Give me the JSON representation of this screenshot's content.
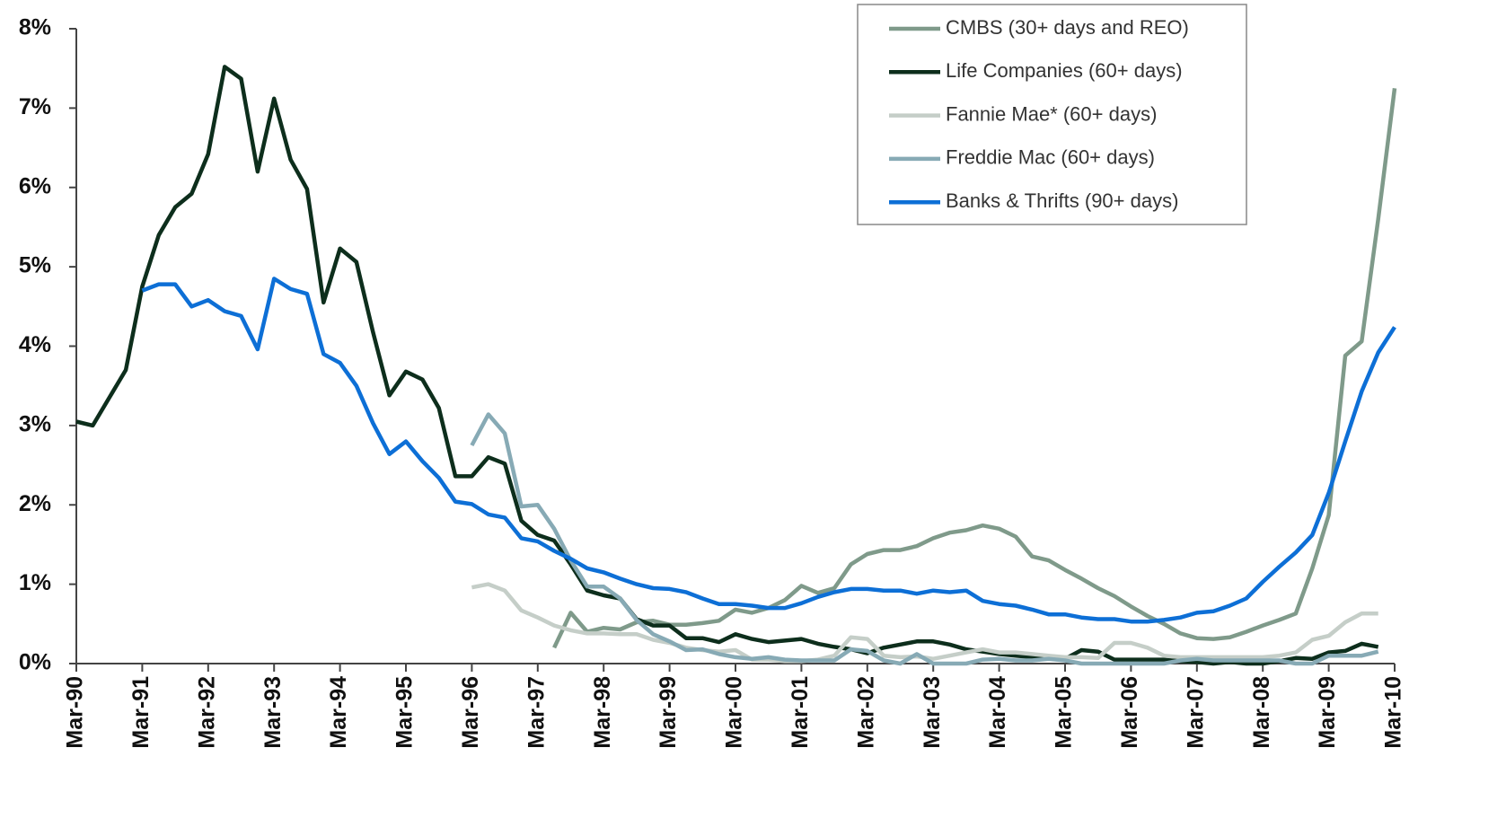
{
  "chart_data": {
    "type": "line",
    "categories": [
      "Mar-90",
      null,
      null,
      null,
      "Mar-91",
      null,
      null,
      null,
      "Mar-92",
      null,
      null,
      null,
      "Mar-93",
      null,
      null,
      null,
      "Mar-94",
      null,
      null,
      null,
      "Mar-95",
      null,
      null,
      null,
      "Mar-96",
      null,
      null,
      null,
      "Mar-97",
      null,
      null,
      null,
      "Mar-98",
      null,
      null,
      null,
      "Mar-99",
      null,
      null,
      null,
      "Mar-00",
      null,
      null,
      null,
      "Mar-01",
      null,
      null,
      null,
      "Mar-02",
      null,
      null,
      null,
      "Mar-03",
      null,
      null,
      null,
      "Mar-04",
      null,
      null,
      null,
      "Mar-05",
      null,
      null,
      null,
      "Mar-06",
      null,
      null,
      null,
      "Mar-07",
      null,
      null,
      null,
      "Mar-08",
      null,
      null,
      null,
      "Mar-09",
      null,
      null,
      null,
      "Mar-10"
    ],
    "series": [
      {
        "name": "CMBS (30+ days and REO)",
        "color": "#7f9a8a",
        "values": [
          null,
          null,
          null,
          null,
          null,
          null,
          null,
          null,
          null,
          null,
          null,
          null,
          null,
          null,
          null,
          null,
          null,
          null,
          null,
          null,
          null,
          null,
          null,
          null,
          null,
          null,
          null,
          null,
          null,
          0.2,
          0.64,
          0.4,
          0.45,
          0.43,
          0.52,
          0.54,
          0.49,
          0.49,
          0.51,
          0.54,
          0.68,
          0.64,
          0.7,
          0.8,
          0.98,
          0.89,
          0.95,
          1.25,
          1.38,
          1.43,
          1.43,
          1.48,
          1.58,
          1.65,
          1.68,
          1.74,
          1.7,
          1.6,
          1.35,
          1.3,
          1.18,
          1.07,
          0.95,
          0.85,
          0.72,
          0.6,
          0.5,
          0.38,
          0.32,
          0.31,
          0.33,
          0.4,
          0.48,
          0.55,
          0.63,
          1.2,
          1.87,
          3.88,
          4.06,
          5.6,
          7.25
        ]
      },
      {
        "name": "Life Companies (60+ days)",
        "color": "#0d2e1c",
        "values": [
          3.05,
          3.0,
          3.35,
          3.7,
          4.75,
          5.4,
          5.75,
          5.92,
          6.42,
          7.52,
          7.37,
          6.2,
          7.12,
          6.35,
          5.98,
          4.55,
          5.23,
          5.06,
          4.18,
          3.38,
          3.68,
          3.58,
          3.22,
          2.36,
          2.36,
          2.6,
          2.52,
          1.8,
          1.62,
          1.55,
          1.25,
          0.92,
          0.86,
          0.82,
          0.56,
          0.48,
          0.48,
          0.32,
          0.32,
          0.27,
          0.37,
          0.31,
          0.27,
          0.29,
          0.31,
          0.25,
          0.21,
          0.18,
          0.13,
          0.2,
          0.24,
          0.28,
          0.28,
          0.24,
          0.18,
          0.15,
          0.12,
          0.1,
          0.08,
          0.07,
          0.06,
          0.17,
          0.15,
          0.05,
          0.05,
          0.05,
          0.05,
          0.03,
          0.02,
          0,
          0.02,
          0,
          0,
          0.03,
          0.07,
          0.06,
          0.14,
          0.16,
          0.25,
          0.21,
          null
        ]
      },
      {
        "name": "Fannie Mae* (60+ days)",
        "color": "#c5cec8",
        "values": [
          null,
          null,
          null,
          null,
          null,
          null,
          null,
          null,
          null,
          null,
          null,
          null,
          null,
          null,
          null,
          null,
          null,
          null,
          null,
          null,
          null,
          null,
          null,
          null,
          0.96,
          1.0,
          0.92,
          0.67,
          0.58,
          0.48,
          0.42,
          0.38,
          0.38,
          0.37,
          0.37,
          0.3,
          0.26,
          0.2,
          0.17,
          0.15,
          0.17,
          0.05,
          0.05,
          0.03,
          0.03,
          0.05,
          0.1,
          0.33,
          0.31,
          0.1,
          0.08,
          0.09,
          0.06,
          0.1,
          0.14,
          0.18,
          0.14,
          0.14,
          0.12,
          0.1,
          0.08,
          0.08,
          0.07,
          0.26,
          0.26,
          0.2,
          0.1,
          0.08,
          0.08,
          0.08,
          0.08,
          0.08,
          0.08,
          0.1,
          0.14,
          0.3,
          0.35,
          0.52,
          0.63,
          0.63,
          null
        ]
      },
      {
        "name": "Freddie Mac (60+ days)",
        "color": "#87aab5",
        "values": [
          null,
          null,
          null,
          null,
          null,
          null,
          null,
          null,
          null,
          null,
          null,
          null,
          null,
          null,
          null,
          null,
          null,
          null,
          null,
          null,
          null,
          null,
          null,
          null,
          2.75,
          3.14,
          2.9,
          1.98,
          2.0,
          1.7,
          1.3,
          0.97,
          0.97,
          0.82,
          0.55,
          0.37,
          0.28,
          0.17,
          0.18,
          0.12,
          0.08,
          0.06,
          0.08,
          0.05,
          0.04,
          0.04,
          0.04,
          0.18,
          0.16,
          0.04,
          0,
          0.12,
          0,
          0,
          0,
          0.05,
          0.06,
          0.04,
          0.04,
          0.06,
          0.04,
          0,
          0,
          0,
          0,
          0,
          0,
          0.04,
          0.06,
          0.04,
          0.04,
          0.04,
          0.04,
          0.04,
          0,
          0,
          0.1,
          0.1,
          0.1,
          0.15,
          null
        ]
      },
      {
        "name": "Banks & Thrifts (90+ days)",
        "color": "#0d6fd6",
        "values": [
          null,
          null,
          null,
          null,
          4.7,
          4.78,
          4.78,
          4.5,
          4.58,
          4.44,
          4.38,
          3.96,
          4.85,
          4.72,
          4.66,
          3.9,
          3.79,
          3.5,
          3.03,
          2.64,
          2.8,
          2.55,
          2.34,
          2.04,
          2.01,
          1.88,
          1.84,
          1.58,
          1.54,
          1.42,
          1.32,
          1.2,
          1.15,
          1.07,
          1.0,
          0.95,
          0.94,
          0.9,
          0.82,
          0.75,
          0.75,
          0.73,
          0.7,
          0.7,
          0.76,
          0.84,
          0.9,
          0.94,
          0.94,
          0.92,
          0.92,
          0.88,
          0.92,
          0.9,
          0.92,
          0.79,
          0.75,
          0.73,
          0.68,
          0.62,
          0.62,
          0.58,
          0.56,
          0.56,
          0.53,
          0.53,
          0.55,
          0.58,
          0.64,
          0.66,
          0.73,
          0.82,
          1.03,
          1.22,
          1.4,
          1.62,
          2.15,
          2.8,
          3.43,
          3.92,
          4.24
        ]
      }
    ],
    "ylim": [
      0,
      8
    ],
    "yticks": [
      {
        "value": 0,
        "label": "0%"
      },
      {
        "value": 1,
        "label": "1%"
      },
      {
        "value": 2,
        "label": "2%"
      },
      {
        "value": 3,
        "label": "3%"
      },
      {
        "value": 4,
        "label": "4%"
      },
      {
        "value": 5,
        "label": "5%"
      },
      {
        "value": 6,
        "label": "6%"
      },
      {
        "value": 7,
        "label": "7%"
      },
      {
        "value": 8,
        "label": "8%"
      }
    ],
    "grid": false,
    "legend": "top-right"
  }
}
